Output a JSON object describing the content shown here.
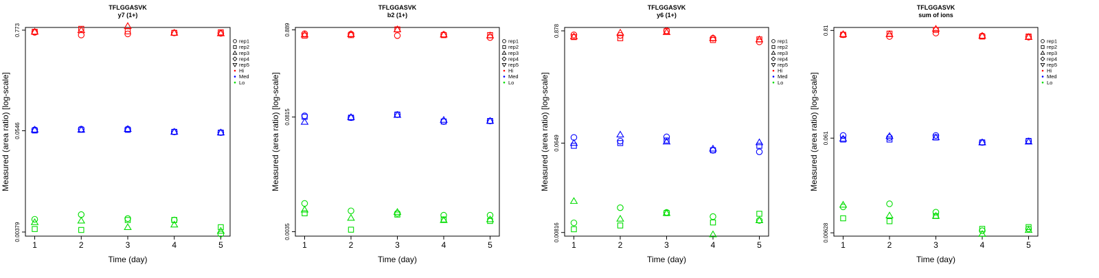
{
  "legend": {
    "reps": [
      {
        "label": "rep1",
        "marker": "circle"
      },
      {
        "label": "rep2",
        "marker": "square"
      },
      {
        "label": "rep3",
        "marker": "triangle-up"
      },
      {
        "label": "rep4",
        "marker": "diamond"
      },
      {
        "label": "rep5",
        "marker": "triangle-down"
      }
    ],
    "levels": [
      {
        "label": "Hi",
        "color": "#ff0000"
      },
      {
        "label": "Med",
        "color": "#0000ff"
      },
      {
        "label": "Lo",
        "color": "#00dd00"
      }
    ],
    "placement": "right-top"
  },
  "chart_data": [
    {
      "type": "scatter",
      "title": "TFLGGASVK",
      "subtitle": "y7 (1+)",
      "xlabel": "Time (day)",
      "ylabel": "Measured (area ratio) [log-scale]",
      "x": [
        1,
        2,
        3,
        4,
        5
      ],
      "xticks": [
        "1",
        "2",
        "3",
        "4",
        "5"
      ],
      "yticks": [
        {
          "label": "0.00379",
          "value": 0.00379
        },
        {
          "label": "0.0546",
          "value": 0.0546
        },
        {
          "label": "0.773",
          "value": 0.773
        }
      ],
      "ylim": [
        0.0034,
        0.83
      ],
      "yscale": "log",
      "series": [
        {
          "name": "rep1",
          "level": "Hi",
          "values": [
            0.73,
            0.68,
            0.7,
            0.72,
            0.71
          ]
        },
        {
          "name": "rep2",
          "level": "Hi",
          "values": [
            0.74,
            0.8,
            0.75,
            0.72,
            0.73
          ]
        },
        {
          "name": "rep3",
          "level": "Hi",
          "values": [
            0.74,
            0.77,
            0.86,
            0.72,
            0.71
          ]
        },
        {
          "name": "rep1",
          "level": "Med",
          "values": [
            0.056,
            0.057,
            0.057,
            0.053,
            0.052
          ]
        },
        {
          "name": "rep2",
          "level": "Med",
          "values": [
            0.055,
            0.056,
            0.056,
            0.053,
            0.052
          ]
        },
        {
          "name": "rep3",
          "level": "Med",
          "values": [
            0.056,
            0.056,
            0.057,
            0.053,
            0.052
          ]
        },
        {
          "name": "rep1",
          "level": "Lo",
          "values": [
            0.0053,
            0.006,
            0.0054,
            0.0052,
            0.0036
          ]
        },
        {
          "name": "rep2",
          "level": "Lo",
          "values": [
            0.0041,
            0.004,
            0.0052,
            0.0052,
            0.0043
          ]
        },
        {
          "name": "rep3",
          "level": "Lo",
          "values": [
            0.0049,
            0.0051,
            0.0043,
            0.0046,
            0.0039
          ]
        }
      ]
    },
    {
      "type": "scatter",
      "title": "TFLGGASVK",
      "subtitle": "b2 (1+)",
      "xlabel": "Time (day)",
      "ylabel": "Measured (area ratio) [log-scale]",
      "x": [
        1,
        2,
        3,
        4,
        5
      ],
      "xticks": [
        "1",
        "2",
        "3",
        "4",
        "5"
      ],
      "yticks": [
        {
          "label": "0.0035",
          "value": 0.0035
        },
        {
          "label": "0.0815",
          "value": 0.0815
        },
        {
          "label": "0.889",
          "value": 0.889
        }
      ],
      "ylim": [
        0.0031,
        0.95
      ],
      "yscale": "log",
      "series": [
        {
          "name": "rep1",
          "level": "Hi",
          "values": [
            0.8,
            0.79,
            0.76,
            0.78,
            0.72
          ]
        },
        {
          "name": "rep2",
          "level": "Hi",
          "values": [
            0.76,
            0.77,
            0.9,
            0.77,
            0.77
          ]
        },
        {
          "name": "rep3",
          "level": "Hi",
          "values": [
            0.78,
            0.79,
            0.9,
            0.78,
            0.76
          ]
        },
        {
          "name": "rep1",
          "level": "Med",
          "values": [
            0.084,
            0.08,
            0.087,
            0.072,
            0.073
          ]
        },
        {
          "name": "rep2",
          "level": "Med",
          "values": [
            0.082,
            0.08,
            0.087,
            0.072,
            0.073
          ]
        },
        {
          "name": "rep3",
          "level": "Med",
          "values": [
            0.071,
            0.081,
            0.086,
            0.075,
            0.073
          ]
        },
        {
          "name": "rep1",
          "level": "Lo",
          "values": [
            0.0076,
            0.0062,
            0.0058,
            0.0055,
            0.0055
          ]
        },
        {
          "name": "rep2",
          "level": "Lo",
          "values": [
            0.0058,
            0.0037,
            0.0056,
            0.0049,
            0.0047
          ]
        },
        {
          "name": "rep3",
          "level": "Lo",
          "values": [
            0.0064,
            0.0051,
            0.006,
            0.0048,
            0.0049
          ]
        }
      ]
    },
    {
      "type": "scatter",
      "title": "TFLGGASVK",
      "subtitle": "y6 (1+)",
      "xlabel": "Time (day)",
      "ylabel": "Measured (area ratio) [log-scale]",
      "x": [
        1,
        2,
        3,
        4,
        5
      ],
      "xticks": [
        "1",
        "2",
        "3",
        "4",
        "5"
      ],
      "yticks": [
        {
          "label": "0.00816",
          "value": 0.00816
        },
        {
          "label": "0.0649",
          "value": 0.0649
        },
        {
          "label": "0.878",
          "value": 0.878
        }
      ],
      "ylim": [
        0.0075,
        0.95
      ],
      "yscale": "log",
      "series": [
        {
          "name": "rep1",
          "level": "Hi",
          "values": [
            0.8,
            0.79,
            0.88,
            0.74,
            0.68
          ]
        },
        {
          "name": "rep2",
          "level": "Hi",
          "values": [
            0.76,
            0.74,
            0.87,
            0.71,
            0.72
          ]
        },
        {
          "name": "rep3",
          "level": "Hi",
          "values": [
            0.77,
            0.84,
            0.85,
            0.74,
            0.72
          ]
        },
        {
          "name": "rep1",
          "level": "Med",
          "values": [
            0.074,
            0.068,
            0.075,
            0.055,
            0.053
          ]
        },
        {
          "name": "rep2",
          "level": "Med",
          "values": [
            0.061,
            0.065,
            0.069,
            0.055,
            0.061
          ]
        },
        {
          "name": "rep3",
          "level": "Med",
          "values": [
            0.065,
            0.079,
            0.067,
            0.057,
            0.066
          ]
        },
        {
          "name": "rep1",
          "level": "Lo",
          "values": [
            0.0102,
            0.0145,
            0.013,
            0.0118,
            0.0108
          ]
        },
        {
          "name": "rep2",
          "level": "Lo",
          "values": [
            0.0088,
            0.0096,
            0.0128,
            0.0103,
            0.0126
          ]
        },
        {
          "name": "rep3",
          "level": "Lo",
          "values": [
            0.0169,
            0.0112,
            0.0128,
            0.0078,
            0.0108
          ]
        }
      ]
    },
    {
      "type": "scatter",
      "title": "TFLGGASVK",
      "subtitle": "sum of ions",
      "xlabel": "Time (day)",
      "ylabel": "Measured (area ratio) [log-scale]",
      "x": [
        1,
        2,
        3,
        4,
        5
      ],
      "xticks": [
        "1",
        "2",
        "3",
        "4",
        "5"
      ],
      "yticks": [
        {
          "label": "0.00628",
          "value": 0.00628
        },
        {
          "label": "0.061",
          "value": 0.061
        },
        {
          "label": "0.81",
          "value": 0.81
        }
      ],
      "ylim": [
        0.0058,
        0.87
      ],
      "yscale": "log",
      "series": [
        {
          "name": "rep1",
          "level": "Hi",
          "values": [
            0.73,
            0.7,
            0.76,
            0.71,
            0.69
          ]
        },
        {
          "name": "rep2",
          "level": "Hi",
          "values": [
            0.73,
            0.75,
            0.82,
            0.7,
            0.7
          ]
        },
        {
          "name": "rep3",
          "level": "Hi",
          "values": [
            0.74,
            0.74,
            0.84,
            0.71,
            0.69
          ]
        },
        {
          "name": "rep1",
          "level": "Med",
          "values": [
            0.065,
            0.062,
            0.065,
            0.055,
            0.057
          ]
        },
        {
          "name": "rep2",
          "level": "Med",
          "values": [
            0.059,
            0.059,
            0.062,
            0.055,
            0.057
          ]
        },
        {
          "name": "rep3",
          "level": "Med",
          "values": [
            0.06,
            0.064,
            0.062,
            0.055,
            0.056
          ]
        },
        {
          "name": "rep1",
          "level": "Lo",
          "values": [
            0.0117,
            0.0126,
            0.0103,
            0.0066,
            0.0069
          ]
        },
        {
          "name": "rep2",
          "level": "Lo",
          "values": [
            0.0089,
            0.0083,
            0.0094,
            0.0069,
            0.0072
          ]
        },
        {
          "name": "rep3",
          "level": "Lo",
          "values": [
            0.0123,
            0.0095,
            0.0094,
            0.0061,
            0.0067
          ]
        }
      ]
    }
  ]
}
